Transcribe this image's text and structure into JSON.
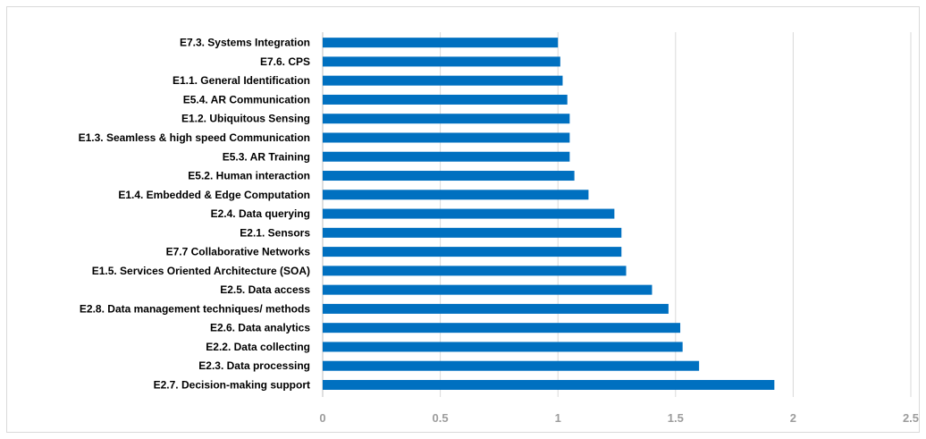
{
  "chart_data": {
    "type": "bar",
    "orientation": "horizontal",
    "title": "",
    "xlabel": "",
    "ylabel": "",
    "xlim": [
      0,
      2.5
    ],
    "x_ticks": [
      "0",
      "0.5",
      "1",
      "1.5",
      "2",
      "2.5"
    ],
    "grid": "vertical",
    "bar_color": "#0070c0",
    "grid_color": "#d9d9d9",
    "categories": [
      "E7.3. Systems Integration",
      "E7.6. CPS",
      "E1.1. General Identification",
      "E5.4. AR Communication",
      "E1.2. Ubiquitous Sensing",
      "E1.3. Seamless & high speed Communication",
      "E5.3. AR Training",
      "E5.2. Human interaction",
      "E1.4. Embedded & Edge Computation",
      "E2.4. Data querying",
      "E2.1. Sensors",
      "E7.7 Collaborative Networks",
      "E1.5. Services Oriented Architecture (SOA)",
      "E2.5. Data access",
      "E2.8. Data management techniques/ methods",
      "E2.6. Data analytics",
      "E2.2. Data collecting",
      "E2.3. Data processing",
      "E2.7. Decision-making support"
    ],
    "values": [
      1.0,
      1.01,
      1.02,
      1.04,
      1.05,
      1.05,
      1.05,
      1.07,
      1.13,
      1.24,
      1.27,
      1.27,
      1.29,
      1.4,
      1.47,
      1.52,
      1.53,
      1.6,
      1.92
    ]
  }
}
